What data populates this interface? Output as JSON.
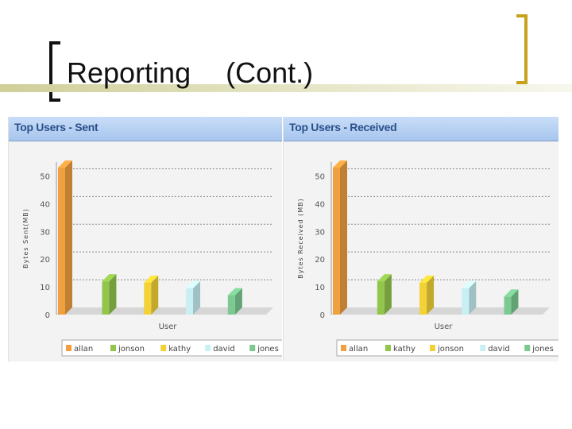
{
  "slide": {
    "title": "Reporting",
    "title_cont": "(Cont.)"
  },
  "colors": {
    "bracket_left": "#111111",
    "bracket_right": "#c8a21c",
    "header_bg": "#a7c6ee",
    "header_text": "#2a4f8a"
  },
  "chart_data": [
    {
      "type": "bar",
      "title": "Top Users - Sent",
      "xlabel": "User",
      "ylabel": "Bytes Sent(MB)",
      "ylim": [
        0,
        55
      ],
      "yticks": [
        0,
        10,
        20,
        30,
        40,
        50
      ],
      "grid": true,
      "legend_position": "bottom",
      "categories": [
        "allan",
        "jonson",
        "kathy",
        "david",
        "jones"
      ],
      "values": [
        53,
        12,
        11.5,
        9.5,
        7
      ],
      "colors": [
        "#f0a040",
        "#92c54c",
        "#f2d236",
        "#c8f0f4",
        "#7cca92"
      ]
    },
    {
      "type": "bar",
      "title": "Top Users - Received",
      "xlabel": "User",
      "ylabel": "Bytes Received (MB)",
      "ylim": [
        0,
        55
      ],
      "yticks": [
        0,
        10,
        20,
        30,
        40,
        50
      ],
      "grid": true,
      "legend_position": "bottom",
      "categories": [
        "allan",
        "kathy",
        "jonson",
        "david",
        "jones"
      ],
      "values": [
        53,
        12,
        11.5,
        9.5,
        6.5
      ],
      "colors": [
        "#f0a040",
        "#92c54c",
        "#f2d236",
        "#c8f0f4",
        "#7cca92"
      ]
    }
  ]
}
